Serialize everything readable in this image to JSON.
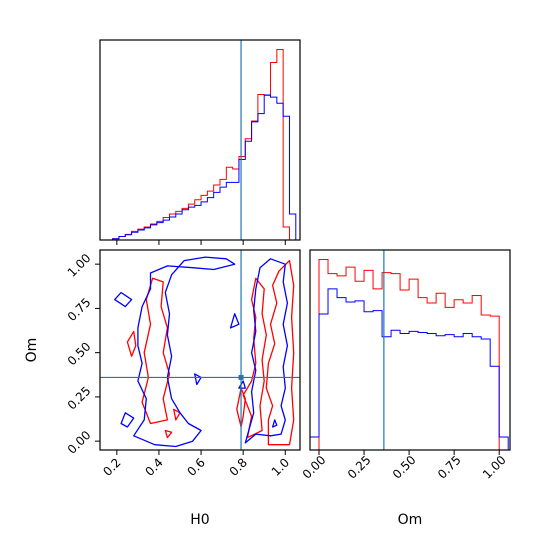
{
  "chart_data": {
    "type": "corner",
    "colors": {
      "series_a": "#ff0000",
      "series_b": "#0000ff",
      "truth": "#1f77b4",
      "frame": "#000000"
    },
    "truth": {
      "H0": 0.79,
      "Om": 0.36
    },
    "panels": [
      {
        "id": "hist-H0",
        "type": "histogram",
        "xlabel": "",
        "xlim": [
          0.12,
          1.07
        ],
        "x_ticks": [
          0.2,
          0.4,
          0.6,
          0.8,
          1.0
        ],
        "x_tick_labels_shown": false,
        "bin_edges": [
          0.12,
          0.15,
          0.18,
          0.21,
          0.24,
          0.27,
          0.3,
          0.33,
          0.36,
          0.39,
          0.42,
          0.45,
          0.48,
          0.51,
          0.54,
          0.57,
          0.6,
          0.63,
          0.66,
          0.69,
          0.72,
          0.75,
          0.78,
          0.81,
          0.84,
          0.87,
          0.9,
          0.93,
          0.96,
          0.99,
          1.02,
          1.05
        ],
        "series": [
          {
            "name": "",
            "color": "#ff0000",
            "values": [
              0.0,
              0.0,
              0.3,
              0.8,
              1.3,
              2.0,
              2.5,
              3.0,
              3.7,
              4.3,
              5.2,
              6.0,
              6.6,
              7.3,
              8.3,
              9.3,
              10.3,
              11.3,
              12.7,
              14.0,
              16.8,
              16.4,
              19.3,
              23.4,
              27.5,
              33.6,
              33.4,
              41.0,
              44.0,
              3.0,
              0.0
            ]
          },
          {
            "name": "",
            "color": "#0000ff",
            "values": [
              0.0,
              0.0,
              0.3,
              0.8,
              1.2,
              1.8,
              2.3,
              2.8,
              3.5,
              4.0,
              4.6,
              5.3,
              6.0,
              7.0,
              7.6,
              8.0,
              8.8,
              9.8,
              11.0,
              12.2,
              13.3,
              13.3,
              18.6,
              22.8,
              27.3,
              29.2,
              33.5,
              33.0,
              31.6,
              28.6,
              6.0
            ]
          }
        ]
      },
      {
        "id": "contour-Om-H0",
        "type": "contour",
        "xlabel": "H0",
        "ylabel": "Om",
        "xlim": [
          0.12,
          1.07
        ],
        "ylim": [
          -0.05,
          1.08
        ],
        "x_ticks": [
          0.2,
          0.4,
          0.6,
          0.8,
          1.0
        ],
        "x_tick_labels": [
          "0.2",
          "0.4",
          "0.6",
          "0.8",
          "1.0"
        ],
        "y_ticks": [
          0.0,
          0.25,
          0.5,
          0.75,
          1.0
        ],
        "y_tick_labels": [
          "0.00",
          "0.25",
          "0.50",
          "0.75",
          "1.00"
        ],
        "series": [
          {
            "name": "",
            "color": "#ff0000",
            "contours": [
              [
                [
                  0.92,
                  -0.02
                ],
                [
                  0.92,
                  0.12
                ],
                [
                  0.94,
                  0.2
                ],
                [
                  0.91,
                  0.3
                ],
                [
                  0.92,
                  0.44
                ],
                [
                  0.95,
                  0.55
                ],
                [
                  0.93,
                  0.66
                ],
                [
                  0.96,
                  0.78
                ],
                [
                  0.94,
                  0.88
                ],
                [
                  0.97,
                  0.96
                ],
                [
                  1.02,
                  1.02
                ],
                [
                  1.04,
                  0.88
                ],
                [
                  1.03,
                  0.7
                ],
                [
                  1.04,
                  0.5
                ],
                [
                  1.03,
                  0.3
                ],
                [
                  1.04,
                  0.12
                ],
                [
                  1.02,
                  -0.02
                ],
                [
                  0.92,
                  -0.02
                ]
              ],
              [
                [
                  0.82,
                  0.02
                ],
                [
                  0.84,
                  0.14
                ],
                [
                  0.8,
                  0.26
                ],
                [
                  0.84,
                  0.34
                ],
                [
                  0.86,
                  0.44
                ],
                [
                  0.85,
                  0.58
                ],
                [
                  0.86,
                  0.7
                ],
                [
                  0.84,
                  0.8
                ],
                [
                  0.86,
                  0.92
                ],
                [
                  0.9,
                  0.86
                ],
                [
                  0.89,
                  0.72
                ],
                [
                  0.91,
                  0.6
                ],
                [
                  0.89,
                  0.46
                ],
                [
                  0.9,
                  0.34
                ],
                [
                  0.88,
                  0.2
                ],
                [
                  0.89,
                  0.06
                ],
                [
                  0.82,
                  0.02
                ]
              ],
              [
                [
                  0.79,
                  0.08
                ],
                [
                  0.77,
                  0.18
                ],
                [
                  0.79,
                  0.3
                ],
                [
                  0.81,
                  0.24
                ],
                [
                  0.8,
                  0.14
                ],
                [
                  0.79,
                  0.08
                ]
              ],
              [
                [
                  0.36,
                  0.1
                ],
                [
                  0.32,
                  0.22
                ],
                [
                  0.35,
                  0.36
                ],
                [
                  0.33,
                  0.5
                ],
                [
                  0.36,
                  0.66
                ],
                [
                  0.34,
                  0.8
                ],
                [
                  0.37,
                  0.92
                ],
                [
                  0.42,
                  0.9
                ],
                [
                  0.41,
                  0.76
                ],
                [
                  0.44,
                  0.64
                ],
                [
                  0.42,
                  0.5
                ],
                [
                  0.45,
                  0.38
                ],
                [
                  0.42,
                  0.24
                ],
                [
                  0.44,
                  0.12
                ],
                [
                  0.36,
                  0.1
                ]
              ],
              [
                [
                  0.27,
                  0.48
                ],
                [
                  0.25,
                  0.56
                ],
                [
                  0.28,
                  0.62
                ],
                [
                  0.29,
                  0.54
                ],
                [
                  0.27,
                  0.48
                ]
              ],
              [
                [
                  0.48,
                  0.12
                ],
                [
                  0.47,
                  0.18
                ],
                [
                  0.5,
                  0.16
                ],
                [
                  0.48,
                  0.12
                ]
              ],
              [
                [
                  0.44,
                  0.02
                ],
                [
                  0.43,
                  0.06
                ],
                [
                  0.46,
                  0.05
                ],
                [
                  0.44,
                  0.02
                ]
              ]
            ]
          },
          {
            "name": "",
            "color": "#0000ff",
            "contours": [
              [
                [
                  0.28,
                  0.03
                ],
                [
                  0.38,
                  -0.02
                ],
                [
                  0.48,
                  -0.03
                ],
                [
                  0.56,
                  0.0
                ],
                [
                  0.6,
                  0.06
                ],
                [
                  0.54,
                  0.1
                ],
                [
                  0.5,
                  0.16
                ],
                [
                  0.46,
                  0.24
                ],
                [
                  0.44,
                  0.36
                ],
                [
                  0.46,
                  0.48
                ],
                [
                  0.44,
                  0.6
                ],
                [
                  0.45,
                  0.72
                ],
                [
                  0.43,
                  0.84
                ],
                [
                  0.46,
                  0.94
                ],
                [
                  0.52,
                  1.02
                ],
                [
                  0.62,
                  1.04
                ],
                [
                  0.72,
                  1.03
                ],
                [
                  0.76,
                  1.0
                ],
                [
                  0.66,
                  0.97
                ],
                [
                  0.56,
                  0.98
                ],
                [
                  0.44,
                  0.99
                ],
                [
                  0.36,
                  0.95
                ],
                [
                  0.36,
                  0.86
                ],
                [
                  0.32,
                  0.76
                ],
                [
                  0.3,
                  0.64
                ],
                [
                  0.3,
                  0.54
                ],
                [
                  0.32,
                  0.44
                ],
                [
                  0.3,
                  0.34
                ],
                [
                  0.34,
                  0.24
                ],
                [
                  0.33,
                  0.12
                ],
                [
                  0.28,
                  0.03
                ]
              ],
              [
                [
                  0.81,
                  -0.01
                ],
                [
                  0.86,
                  0.04
                ],
                [
                  0.93,
                  0.03
                ],
                [
                  0.98,
                  0.04
                ],
                [
                  1.0,
                  0.12
                ],
                [
                  0.98,
                  0.2
                ],
                [
                  1.0,
                  0.3
                ],
                [
                  0.99,
                  0.42
                ],
                [
                  1.01,
                  0.54
                ],
                [
                  0.99,
                  0.66
                ],
                [
                  1.01,
                  0.78
                ],
                [
                  0.99,
                  0.9
                ],
                [
                  1.0,
                  1.0
                ],
                [
                  0.93,
                  1.03
                ],
                [
                  0.88,
                  0.98
                ],
                [
                  0.86,
                  0.86
                ],
                [
                  0.85,
                  0.74
                ],
                [
                  0.86,
                  0.62
                ],
                [
                  0.84,
                  0.5
                ],
                [
                  0.86,
                  0.4
                ],
                [
                  0.84,
                  0.28
                ],
                [
                  0.85,
                  0.16
                ],
                [
                  0.81,
                  -0.01
                ]
              ],
              [
                [
                  0.22,
                  0.1
                ],
                [
                  0.24,
                  0.16
                ],
                [
                  0.28,
                  0.13
                ],
                [
                  0.25,
                  0.08
                ],
                [
                  0.22,
                  0.1
                ]
              ],
              [
                [
                  0.19,
                  0.8
                ],
                [
                  0.22,
                  0.84
                ],
                [
                  0.27,
                  0.8
                ],
                [
                  0.24,
                  0.76
                ],
                [
                  0.19,
                  0.8
                ]
              ],
              [
                [
                  0.58,
                  0.32
                ],
                [
                  0.57,
                  0.38
                ],
                [
                  0.6,
                  0.36
                ],
                [
                  0.58,
                  0.32
                ]
              ],
              [
                [
                  0.74,
                  0.64
                ],
                [
                  0.76,
                  0.72
                ],
                [
                  0.78,
                  0.66
                ],
                [
                  0.74,
                  0.64
                ]
              ],
              [
                [
                  0.78,
                  0.3
                ],
                [
                  0.8,
                  0.34
                ],
                [
                  0.81,
                  0.3
                ],
                [
                  0.78,
                  0.3
                ]
              ],
              [
                [
                  0.94,
                  0.08
                ],
                [
                  0.95,
                  0.12
                ],
                [
                  0.96,
                  0.09
                ],
                [
                  0.94,
                  0.08
                ]
              ]
            ]
          }
        ]
      },
      {
        "id": "hist-Om",
        "type": "histogram",
        "xlabel": "Om",
        "xlim": [
          -0.05,
          1.06
        ],
        "x_ticks": [
          0.0,
          0.25,
          0.5,
          0.75,
          1.0
        ],
        "x_tick_labels": [
          "0.00",
          "0.25",
          "0.50",
          "0.75",
          "1.00"
        ],
        "bin_edges": [
          -0.05,
          0.0,
          0.05,
          0.1,
          0.15,
          0.2,
          0.25,
          0.3,
          0.35,
          0.4,
          0.45,
          0.5,
          0.55,
          0.6,
          0.65,
          0.7,
          0.75,
          0.8,
          0.85,
          0.9,
          0.95,
          1.0,
          1.05
        ],
        "series": [
          {
            "name": "",
            "color": "#ff0000",
            "values": [
              0,
              175,
              162,
              160,
              168,
              155,
              165,
              148,
              163,
              162,
              147,
              157,
              140,
              135,
              144,
              131,
              138,
              135,
              142,
              124,
              123,
              0
            ]
          },
          {
            "name": "",
            "color": "#0000ff",
            "values": [
              12,
              125,
              148,
              140,
              136,
              137,
              127,
              128,
              104,
              110,
              107,
              109,
              108,
              107,
              105,
              106,
              104,
              107,
              104,
              102,
              77,
              12
            ]
          }
        ]
      }
    ]
  }
}
